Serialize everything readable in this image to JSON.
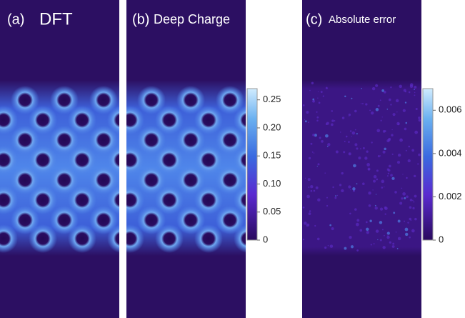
{
  "panels": [
    {
      "label": "(a)",
      "title": "DFT"
    },
    {
      "label": "(b)",
      "title": "Deep Charge"
    },
    {
      "label": "(c)",
      "title": "Absolute error"
    }
  ],
  "colorbars": [
    {
      "ylim": [
        0,
        0.27
      ],
      "yticks": [
        0,
        0.05,
        {
          "value": 0.1,
          "label": "0.10"
        },
        0.15,
        {
          "value": 0.2,
          "label": "0.20"
        },
        0.25
      ]
    },
    {
      "ylim": [
        0,
        0.007
      ],
      "yticks": [
        0,
        0.002,
        0.004,
        0.006
      ]
    }
  ]
}
